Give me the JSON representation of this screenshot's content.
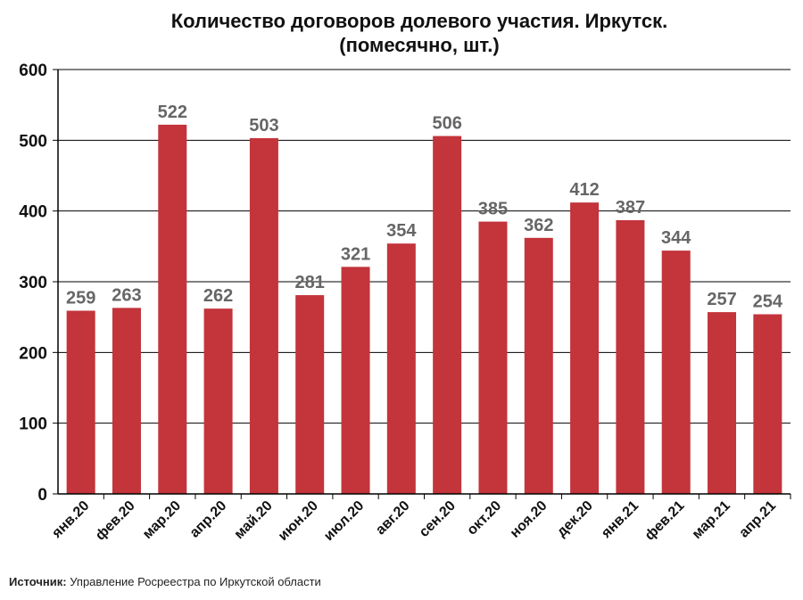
{
  "chart_data": {
    "type": "bar",
    "title": "Количество договоров долевого участия. Иркутск.",
    "subtitle": "(помесячно, шт.)",
    "categories": [
      "янв.20",
      "фев.20",
      "мар.20",
      "апр.20",
      "май.20",
      "июн.20",
      "июл.20",
      "авг.20",
      "сен.20",
      "окт.20",
      "ноя.20",
      "дек.20",
      "янв.21",
      "фев.21",
      "мар.21",
      "апр.21"
    ],
    "values": [
      259,
      263,
      522,
      262,
      503,
      281,
      321,
      354,
      506,
      385,
      362,
      412,
      387,
      344,
      257,
      254
    ],
    "ylim": [
      0,
      600
    ],
    "yticks": [
      0,
      100,
      200,
      300,
      400,
      500,
      600
    ],
    "grid": true,
    "bar_color": "#c3343b",
    "label_color": "#666666",
    "xlabel": "",
    "ylabel": ""
  },
  "source": {
    "label": "Источник:",
    "text": " Управление Росреестра по Иркутской области"
  }
}
